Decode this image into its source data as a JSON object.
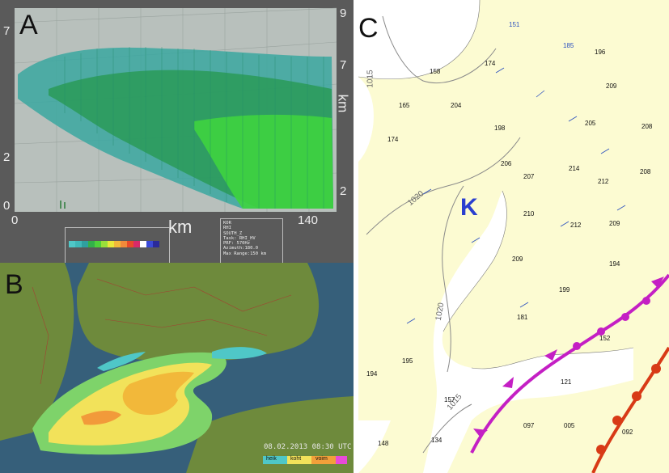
{
  "panels": {
    "a": {
      "letter": "A",
      "y_left_ticks": [
        "7",
        "2",
        "0"
      ],
      "y_right_ticks": [
        "9",
        "7",
        "2"
      ],
      "y_right_label": "km",
      "x_ticks": [
        "0",
        "140"
      ],
      "x_label": "km",
      "info_lines": [
        "KOR",
        "RHI",
        "SOUTH_Z",
        "Task: RHI_HV",
        "PRF: 570Hz",
        "Azimuth:180.0",
        "Max Range:150 km"
      ],
      "colors": {
        "background": "#b8c0bc",
        "echo_teal": "#3aa7a0",
        "echo_green": "#2fc62f",
        "frame": "#5a5a5a"
      }
    },
    "b": {
      "letter": "B",
      "timestamp": "08.02.2013 08:30 UTC",
      "legend_labels": [
        "heik",
        "koht",
        "voim"
      ],
      "colors": {
        "sea": "#2a4f7a",
        "land": "#6e8a3c",
        "rain_yellow": "#f2e25a",
        "rain_orange": "#f29a3a",
        "rain_green": "#7ed36a",
        "rain_cyan": "#4fc7c7"
      }
    },
    "c": {
      "letter": "C",
      "low_marker": "K",
      "isobars": [
        "1015",
        "1020",
        "1020",
        "1015"
      ],
      "stations": [
        {
          "v": "151",
          "c": "b"
        },
        {
          "v": "185",
          "c": "b"
        },
        {
          "v": "174",
          "c": "k"
        },
        {
          "v": "196",
          "c": "k"
        },
        {
          "v": "158",
          "c": "k"
        },
        {
          "v": "204",
          "c": "k"
        },
        {
          "v": "209",
          "c": "k"
        },
        {
          "v": "165",
          "c": "k"
        },
        {
          "v": "198",
          "c": "k"
        },
        {
          "v": "205",
          "c": "k"
        },
        {
          "v": "208",
          "c": "k"
        },
        {
          "v": "174",
          "c": "k"
        },
        {
          "v": "206",
          "c": "k"
        },
        {
          "v": "214",
          "c": "k"
        },
        {
          "v": "208",
          "c": "k"
        },
        {
          "v": "212",
          "c": "k"
        },
        {
          "v": "210",
          "c": "k"
        },
        {
          "v": "207",
          "c": "k"
        },
        {
          "v": "209",
          "c": "k"
        },
        {
          "v": "212",
          "c": "k"
        },
        {
          "v": "209",
          "c": "k"
        },
        {
          "v": "194",
          "c": "k"
        },
        {
          "v": "199",
          "c": "k"
        },
        {
          "v": "181",
          "c": "k"
        },
        {
          "v": "195",
          "c": "k"
        },
        {
          "v": "194",
          "c": "k"
        },
        {
          "v": "152",
          "c": "k"
        },
        {
          "v": "134",
          "c": "k"
        },
        {
          "v": "157",
          "c": "k"
        },
        {
          "v": "148",
          "c": "k"
        },
        {
          "v": "097",
          "c": "k"
        },
        {
          "v": "005",
          "c": "k"
        },
        {
          "v": "092",
          "c": "k"
        },
        {
          "v": "121",
          "c": "k"
        }
      ],
      "colors": {
        "land": "#fcfbd2",
        "sea": "#ffffff",
        "occluded_front": "#c41fc4",
        "warm_front": "#d83a16",
        "isobar": "#8a8a8a",
        "station_blue": "#2a4fbf"
      }
    }
  }
}
